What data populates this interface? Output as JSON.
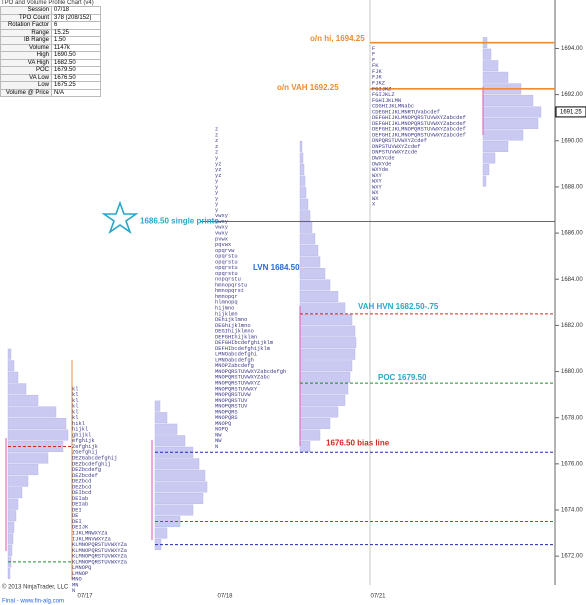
{
  "window": {
    "title": "TPO and Volume Profile Chart (v4)"
  },
  "info_table": {
    "rows": [
      [
        "Session",
        "07/18"
      ],
      [
        "TPO Count",
        "378 (208/152)"
      ],
      [
        "Rotation Factor",
        "6"
      ],
      [
        "Range",
        "15.25"
      ],
      [
        "IB Range",
        "1.50"
      ],
      [
        "Volume",
        "1147k"
      ],
      [
        "High",
        "1690.50"
      ],
      [
        "VA High",
        "1682.50"
      ],
      [
        "POC",
        "1679.50"
      ],
      [
        "VA Low",
        "1676.50"
      ],
      [
        "Low",
        "1675.25"
      ],
      [
        "Volume @ Price",
        "N/A"
      ]
    ]
  },
  "price_axis": {
    "ylim": [
      1670.75,
      1696.1
    ],
    "yticks": [
      {
        "value": 1672,
        "label": "1672.00"
      },
      {
        "value": 1674,
        "label": "1674.00"
      },
      {
        "value": 1676,
        "label": "1676.00"
      },
      {
        "value": 1678,
        "label": "1678.00"
      },
      {
        "value": 1680,
        "label": "1680.00"
      },
      {
        "value": 1682,
        "label": "1682.00"
      },
      {
        "value": 1684,
        "label": "1684.00"
      },
      {
        "value": 1686,
        "label": "1686.00"
      },
      {
        "value": 1688,
        "label": "1688.00"
      },
      {
        "value": 1690,
        "label": "1690.00"
      },
      {
        "value": 1692,
        "label": "1692.00"
      },
      {
        "value": 1694,
        "label": "1694.00"
      }
    ],
    "last": {
      "value": 1691.25,
      "label": "1691.25"
    }
  },
  "levels": [
    {
      "price": 1694.25,
      "label": "o/n hi, 1694.25"
    },
    {
      "price": 1692.25,
      "label": "o/n VAH 1692.25"
    },
    {
      "price": 1686.5,
      "label": "1686.50 single prints"
    },
    {
      "price": 1684.5,
      "label": "LVN 1684.50"
    },
    {
      "price": 1682.5,
      "label": "VAH HVN 1682.50-.75"
    },
    {
      "price": 1679.5,
      "label": "POC 1679.50"
    },
    {
      "price": 1676.5,
      "label": "1676.50 bias line"
    },
    {
      "price": 1673.5
    },
    {
      "price": 1672.5
    },
    {
      "price": 1671.75
    },
    {
      "price": 1676.75
    }
  ],
  "profiles": [
    {
      "low": 1671,
      "step": 0.5,
      "volumes": [
        2,
        3,
        4,
        5,
        6,
        8,
        10,
        14,
        20,
        30,
        40,
        55,
        60,
        58,
        48,
        30,
        18,
        10,
        6,
        3
      ]
    },
    {
      "low": 1672.25,
      "step": 0.5,
      "volumes": [
        6,
        12,
        25,
        38,
        48,
        52,
        50,
        44,
        38,
        30,
        22,
        12,
        5
      ]
    },
    {
      "low": 1676.5,
      "step": 0.5,
      "volumes": [
        10,
        20,
        30,
        38,
        45,
        48,
        50,
        52,
        55,
        56,
        55,
        52,
        45,
        38,
        30,
        25,
        20,
        18,
        15,
        12,
        10,
        8,
        6,
        5,
        4,
        3,
        2
      ]
    },
    {
      "low": 1688,
      "step": 0.5,
      "volumes": [
        3,
        6,
        12,
        25,
        40,
        55,
        58,
        50,
        38,
        25,
        15,
        8,
        4
      ]
    }
  ],
  "tpo": [
    {
      "top": 1679.25,
      "rows": [
        "kl",
        "kl",
        "kl",
        "kl",
        "kl",
        "kl",
        "hikl",
        "hijkl",
        "ghijkl",
        "efghijk",
        "Zefghijk",
        "ZGefghij",
        "DEZGabcdefghij",
        "DEZbcdefghij",
        "DEZbcdefg",
        "DEZbcdef",
        "DEZbcd",
        "DEZbcd",
        "DEIbcd",
        "DEIab",
        "DEIab",
        "DEI",
        "DE",
        "DEI",
        "DEIJK",
        "IJKLMNWXYZa",
        "IJKLMNVWXYZa",
        "KLMNOPQRSTUVWXYZa",
        "KLMNOPQRSTUVWXYZa",
        "KLMNOPQRSTUVWXYZa",
        "KLMNOPQRSTUVWXYZa",
        "LMNOPQ",
        "LMNOP",
        "MNO",
        "MN",
        "N"
      ]
    },
    {
      "top": 1690.5,
      "rows": [
        "z",
        "z",
        "z",
        "z",
        "z",
        "y",
        "yz",
        "yz",
        "yz",
        "y",
        "y",
        "y",
        "y",
        "y",
        "y",
        "vwxy",
        "vwxy",
        "vwxy",
        "vwxy",
        "pvwx",
        "pqvwx",
        "opqrvw",
        "opqrstu",
        "opqrstu",
        "opqrstu",
        "opqrstu",
        "nopqrstu",
        "hmnopqrstu",
        "hmnopqrst",
        "hmnopqr",
        "hlmnopq",
        "hijmno",
        "hijklmn",
        "DEhijklmno",
        "DEGhijklmno",
        "DEGIhijklmno",
        "DEFGHIhijklmn",
        "DEFGHIbcdefghijklm",
        "DEFHIbcdefghijklm",
        "LMNOabcdefghi",
        "LMNOabcdefgh",
        "MNOPZabcdefg",
        "MNOPQRSTUVWXYZabcdefgh",
        "MNOPQRSTUVWXYZabc",
        "MNOPQRSTUVWXYZ",
        "MNOPQRSTUVWXY",
        "MNOPQRSTUVW",
        "MNOPQRSTUV",
        "MNOPQRSTUV",
        "MNOPQRS",
        "MNOPQRS",
        "MNOPQ",
        "NOPQ",
        "NW",
        "NW",
        "N"
      ]
    },
    {
      "top": 1694,
      "rows": [
        "F",
        "F",
        "F",
        "FK",
        "FJK",
        "FJK",
        "FJKZ",
        "FGIJKZ",
        "FGIJKLZ",
        "FGHIJKLMN",
        "CDGHIJKLMNabc",
        "CDEGHIJKLMNRTUVabcdef",
        "DEFGHIJKLMNOPQRSTUVWXYZabcdef",
        "DEFGHIJKLMNOPQRSTUVWXYZabcdef",
        "DEFGHIJKLMNOPQRSTUVWXYZabcdef",
        "DEFGHIJKLMNOPQRSTUVWXYZabcdef",
        "DNPQRSTUVWXYZcdef",
        "DNPSTUVWXYZcdef",
        "DNPSTUVWXYZcde",
        "DWXYcde",
        "DWXYde",
        "WXYde",
        "WXY",
        "WXY",
        "WXY",
        "WX",
        "WX",
        "X"
      ]
    }
  ],
  "dates": [
    "07/17",
    "07/18",
    "07/21"
  ],
  "footer": {
    "copyright": "© 2013 NinjaTrader, LLC",
    "source": "Final - www.fin-alg.com"
  }
}
